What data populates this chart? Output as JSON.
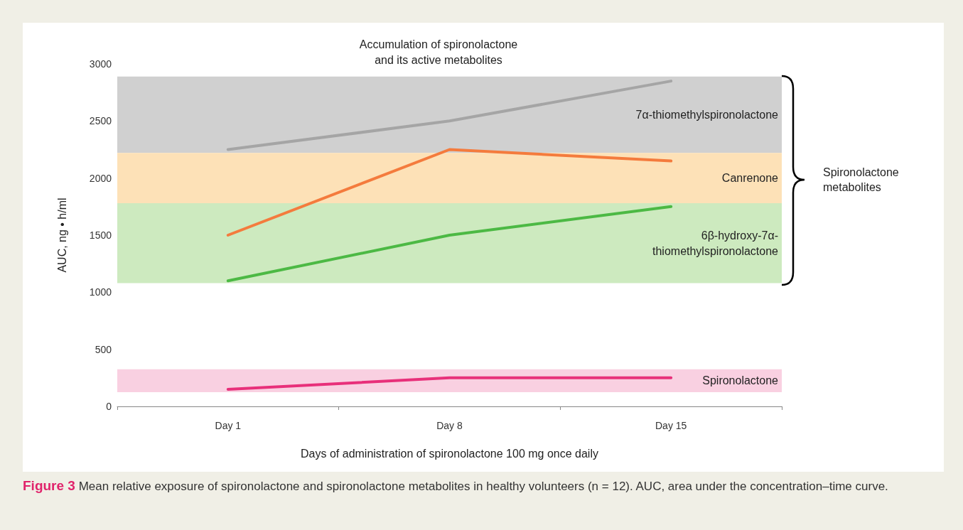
{
  "chart_data": {
    "type": "line",
    "title": "Accumulation of spironolactone\nand its active metabolites",
    "xlabel": "Days of administration of spironolactone 100 mg once daily",
    "ylabel": "AUC, ng • h/ml",
    "categories": [
      "Day 1",
      "Day 8",
      "Day 15"
    ],
    "series": [
      {
        "color": "#a5a5a5",
        "values": [
          2250,
          2500,
          2850
        ]
      },
      {
        "color": "#f47b3d",
        "values": [
          1500,
          2250,
          2150
        ]
      },
      {
        "color": "#4cb944",
        "values": [
          1100,
          1500,
          1750
        ]
      },
      {
        "color": "#e8307a",
        "values": [
          150,
          250,
          250
        ]
      }
    ],
    "ylim": [
      0,
      3000
    ],
    "yticks": [
      0,
      500,
      1000,
      1500,
      2000,
      2500,
      3000
    ],
    "grid": false,
    "marker": "none",
    "line_style": "solid",
    "bands": [
      {
        "axis": "y",
        "from": 2220,
        "to": 2890,
        "label": "7α-thiomethylspironolactone",
        "color": "#c8c8c8"
      },
      {
        "axis": "y",
        "from": 1780,
        "to": 2220,
        "label": "Canrenone",
        "color": "#fddcaa"
      },
      {
        "axis": "y",
        "from": 1080,
        "to": 1780,
        "label": "6β-hydroxy-7α-\nthiomethylspironolactone",
        "color": "#c4e6b4"
      },
      {
        "axis": "y",
        "from": 125,
        "to": 325,
        "label": "Spironolactone",
        "color": "#f8c8dc"
      }
    ],
    "annotations": [
      "Spironolactone\nmetabolites",
      "Figure 3 Mean relative exposure of spironolactone and spironolactone metabolites in healthy volunteers (n = 12). AUC, area under the concentration–time curve."
    ]
  }
}
